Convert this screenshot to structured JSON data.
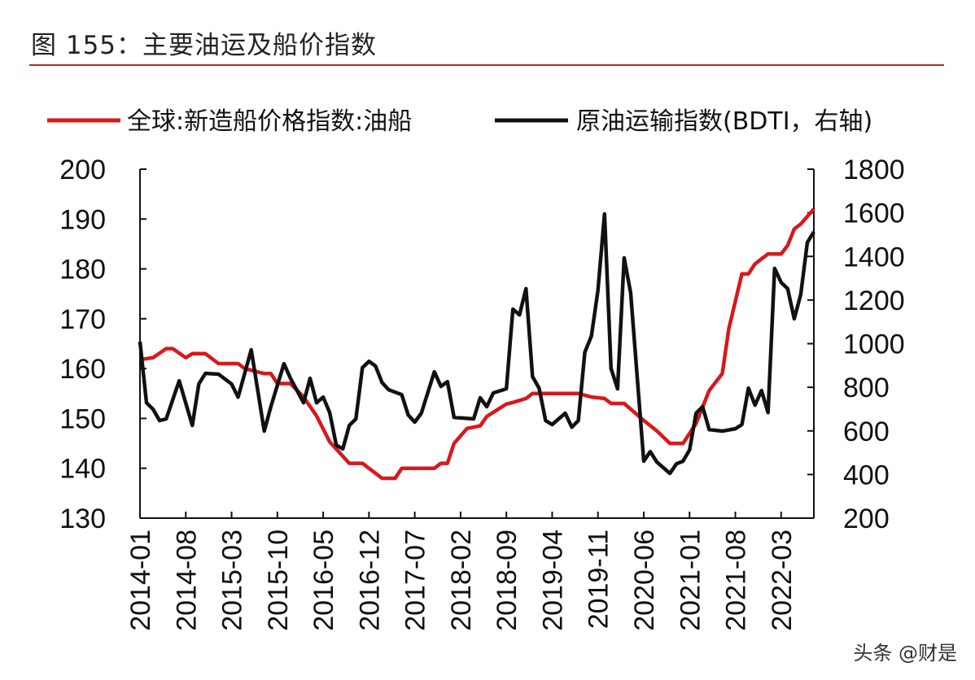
{
  "title": "图 155：主要油运及船价指数",
  "watermark": "头条 @财是",
  "chart_data": {
    "type": "line",
    "title": "图 155：主要油运及船价指数",
    "legend_position": "top",
    "grid": false,
    "x_ticks": [
      "2014-01",
      "2014-08",
      "2015-03",
      "2015-10",
      "2016-05",
      "2016-12",
      "2017-07",
      "2018-02",
      "2018-09",
      "2019-04",
      "2019-11",
      "2020-06",
      "2021-01",
      "2021-08",
      "2022-03"
    ],
    "x_range": [
      "2014-01",
      "2022-08"
    ],
    "y_left": {
      "range": [
        130,
        200
      ],
      "ticks": [
        130,
        140,
        150,
        160,
        170,
        180,
        190,
        200
      ]
    },
    "y_right": {
      "range": [
        200,
        1800
      ],
      "ticks": [
        200,
        400,
        600,
        800,
        1000,
        1200,
        1400,
        1600,
        1800
      ]
    },
    "series": [
      {
        "name": "全球:新造船价格指数:油船",
        "axis": "left",
        "color": "#d7191c",
        "points": [
          [
            "2014-01",
            161.8
          ],
          [
            "2014-03",
            162.2
          ],
          [
            "2014-05",
            164
          ],
          [
            "2014-06",
            164
          ],
          [
            "2014-08",
            162.2
          ],
          [
            "2014-09",
            163
          ],
          [
            "2014-11",
            163
          ],
          [
            "2015-01",
            161
          ],
          [
            "2015-04",
            161
          ],
          [
            "2015-05",
            160
          ],
          [
            "2015-08",
            159
          ],
          [
            "2015-09",
            159
          ],
          [
            "2015-10",
            157
          ],
          [
            "2015-12",
            157
          ],
          [
            "2016-02",
            154.3
          ],
          [
            "2016-04",
            150.5
          ],
          [
            "2016-06",
            145.3
          ],
          [
            "2016-09",
            141
          ],
          [
            "2016-11",
            141
          ],
          [
            "2017-02",
            138
          ],
          [
            "2017-04",
            138
          ],
          [
            "2017-05",
            140
          ],
          [
            "2017-10",
            140
          ],
          [
            "2017-11",
            141
          ],
          [
            "2017-12",
            141
          ],
          [
            "2018-01",
            145
          ],
          [
            "2018-03",
            148
          ],
          [
            "2018-05",
            148.5
          ],
          [
            "2018-06",
            150.4
          ],
          [
            "2018-09",
            152.9
          ],
          [
            "2018-10",
            153.2
          ],
          [
            "2018-12",
            154
          ],
          [
            "2019-01",
            155
          ],
          [
            "2019-08",
            155
          ],
          [
            "2019-10",
            154.3
          ],
          [
            "2019-12",
            154
          ],
          [
            "2020-01",
            153
          ],
          [
            "2020-03",
            153
          ],
          [
            "2020-06",
            149.6
          ],
          [
            "2020-08",
            147.5
          ],
          [
            "2020-10",
            145
          ],
          [
            "2020-12",
            145
          ],
          [
            "2021-02",
            149
          ],
          [
            "2021-04",
            155.6
          ],
          [
            "2021-06",
            159
          ],
          [
            "2021-07",
            168
          ],
          [
            "2021-09",
            179
          ],
          [
            "2021-10",
            179
          ],
          [
            "2021-11",
            181
          ],
          [
            "2022-01",
            183
          ],
          [
            "2022-03",
            183
          ],
          [
            "2022-04",
            184.7
          ],
          [
            "2022-05",
            188
          ],
          [
            "2022-06",
            189
          ],
          [
            "2022-08",
            192
          ]
        ]
      },
      {
        "name": "原油运输指数(BDTI，右轴)",
        "axis": "right",
        "color": "#111111",
        "points": [
          [
            "2014-01",
            1009
          ],
          [
            "2014-02",
            729
          ],
          [
            "2014-03",
            699
          ],
          [
            "2014-04",
            647
          ],
          [
            "2014-05",
            655
          ],
          [
            "2014-07",
            830
          ],
          [
            "2014-09",
            625
          ],
          [
            "2014-10",
            815
          ],
          [
            "2014-11",
            864
          ],
          [
            "2015-01",
            860
          ],
          [
            "2015-03",
            815
          ],
          [
            "2015-04",
            755
          ],
          [
            "2015-06",
            972
          ],
          [
            "2015-08",
            599
          ],
          [
            "2015-09",
            711
          ],
          [
            "2015-11",
            908
          ],
          [
            "2015-12",
            841
          ],
          [
            "2016-02",
            729
          ],
          [
            "2016-03",
            841
          ],
          [
            "2016-04",
            729
          ],
          [
            "2016-05",
            755
          ],
          [
            "2016-06",
            684
          ],
          [
            "2016-07",
            535
          ],
          [
            "2016-08",
            517
          ],
          [
            "2016-09",
            625
          ],
          [
            "2016-10",
            655
          ],
          [
            "2016-11",
            890
          ],
          [
            "2016-12",
            919
          ],
          [
            "2017-01",
            897
          ],
          [
            "2017-02",
            822
          ],
          [
            "2017-03",
            789
          ],
          [
            "2017-05",
            766
          ],
          [
            "2017-06",
            673
          ],
          [
            "2017-07",
            640
          ],
          [
            "2017-08",
            681
          ],
          [
            "2017-10",
            871
          ],
          [
            "2017-11",
            804
          ],
          [
            "2017-12",
            826
          ],
          [
            "2018-01",
            662
          ],
          [
            "2018-04",
            655
          ],
          [
            "2018-05",
            752
          ],
          [
            "2018-06",
            711
          ],
          [
            "2018-07",
            774
          ],
          [
            "2018-09",
            793
          ],
          [
            "2018-10",
            1158
          ],
          [
            "2018-11",
            1132
          ],
          [
            "2018-12",
            1252
          ],
          [
            "2019-01",
            849
          ],
          [
            "2019-02",
            796
          ],
          [
            "2019-03",
            647
          ],
          [
            "2019-04",
            629
          ],
          [
            "2019-06",
            681
          ],
          [
            "2019-07",
            617
          ],
          [
            "2019-08",
            647
          ],
          [
            "2019-09",
            961
          ],
          [
            "2019-10",
            1035
          ],
          [
            "2019-11",
            1244
          ],
          [
            "2019-12",
            1595
          ],
          [
            "2020-01",
            886
          ],
          [
            "2020-02",
            793
          ],
          [
            "2020-03",
            1393
          ],
          [
            "2020-04",
            1233
          ],
          [
            "2020-06",
            461
          ],
          [
            "2020-07",
            505
          ],
          [
            "2020-08",
            457
          ],
          [
            "2020-10",
            405
          ],
          [
            "2020-11",
            449
          ],
          [
            "2020-12",
            461
          ],
          [
            "2021-01",
            513
          ],
          [
            "2021-02",
            681
          ],
          [
            "2021-03",
            711
          ],
          [
            "2021-04",
            606
          ],
          [
            "2021-06",
            599
          ],
          [
            "2021-08",
            610
          ],
          [
            "2021-09",
            629
          ],
          [
            "2021-10",
            796
          ],
          [
            "2021-11",
            718
          ],
          [
            "2021-12",
            785
          ],
          [
            "2022-01",
            684
          ],
          [
            "2022-02",
            1345
          ],
          [
            "2022-03",
            1281
          ],
          [
            "2022-04",
            1252
          ],
          [
            "2022-05",
            1114
          ],
          [
            "2022-06",
            1226
          ],
          [
            "2022-07",
            1464
          ],
          [
            "2022-08",
            1513
          ]
        ]
      }
    ]
  }
}
